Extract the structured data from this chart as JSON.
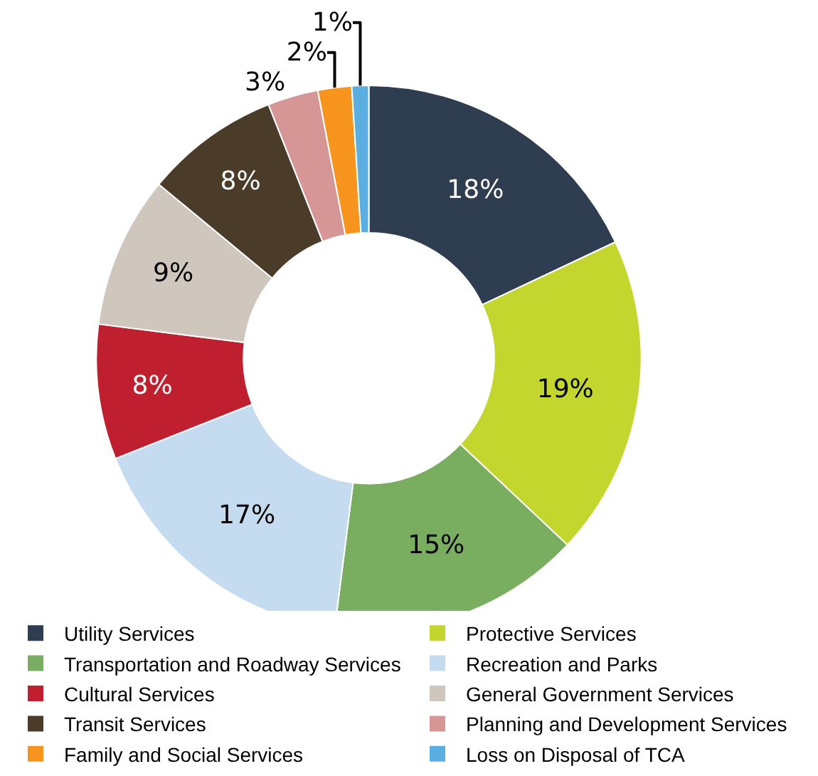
{
  "chart_data": {
    "type": "donut",
    "categories": [
      "Utility Services",
      "Protective Services",
      "Transportation and Roadway Services",
      "Recreation and Parks",
      "Cultural Services",
      "General Government Services",
      "Transit Services",
      "Planning and Development Services",
      "Family and Social Services",
      "Loss on Disposal of TCA"
    ],
    "values": [
      18,
      19,
      15,
      17,
      8,
      9,
      8,
      3,
      2,
      1
    ],
    "value_labels": [
      "18%",
      "19%",
      "15%",
      "17%",
      "8%",
      "9%",
      "8%",
      "3%",
      "2%",
      "1%"
    ],
    "colors": [
      "#2e3d50",
      "#c2d62e",
      "#79ad5f",
      "#c5dbf0",
      "#c01f2f",
      "#cfc6bd",
      "#4b3c2a",
      "#d69696",
      "#f7941d",
      "#5aaee0"
    ],
    "legend": "bottom"
  }
}
